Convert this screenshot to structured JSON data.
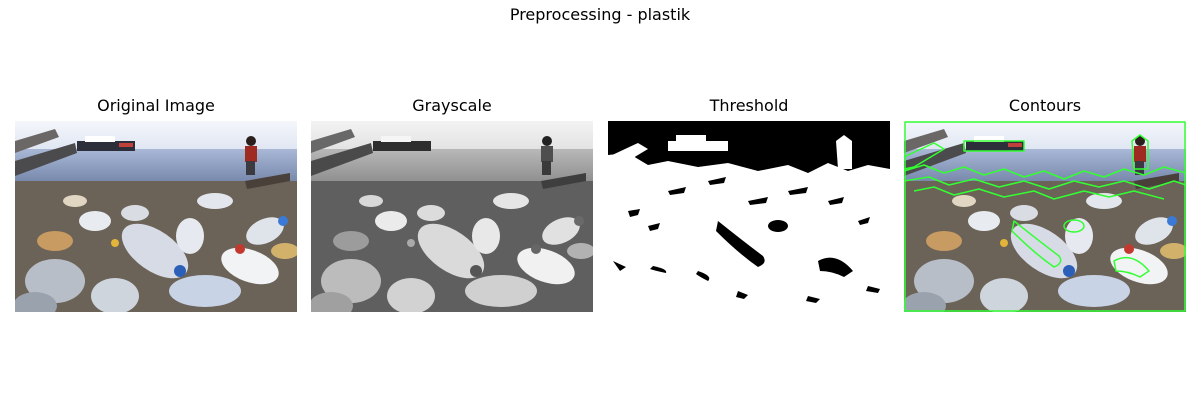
{
  "figure": {
    "title": "Preprocessing - plastik"
  },
  "panels": [
    {
      "title": "Original Image",
      "kind": "original"
    },
    {
      "title": "Grayscale",
      "kind": "grayscale"
    },
    {
      "title": "Threshold",
      "kind": "threshold"
    },
    {
      "title": "Contours",
      "kind": "contours"
    }
  ],
  "colors": {
    "contour_line": "#33ff33",
    "sky": "#e9eef6",
    "water": "#6d7fa6"
  }
}
